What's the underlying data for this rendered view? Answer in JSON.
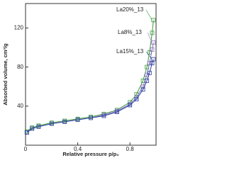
{
  "chart_data": {
    "type": "line",
    "x_label": "Relative pressure p/p₀",
    "y_label": "Absorbed volume, cm³/g",
    "x": [
      0.01,
      0.05,
      0.1,
      0.2,
      0.3,
      0.4,
      0.5,
      0.6,
      0.7,
      0.8,
      0.85,
      0.9,
      0.93,
      0.95,
      0.97,
      0.98
    ],
    "series": [
      {
        "name": "La20%_13",
        "color": "#3a9a3a",
        "values": [
          14,
          18,
          20,
          23,
          25,
          27,
          29,
          32,
          36,
          44,
          52,
          66,
          80,
          95,
          115,
          128
        ]
      },
      {
        "name": "La8%_13",
        "color": "#8a6fc0",
        "values": [
          13,
          17,
          19,
          22,
          24,
          26,
          28,
          31,
          35,
          42,
          49,
          60,
          72,
          84,
          98,
          105
        ]
      },
      {
        "name": "La15%_13",
        "color": "#2a3f9f",
        "values": [
          13,
          17,
          19,
          22,
          24,
          26,
          28,
          30,
          34,
          41,
          47,
          57,
          66,
          74,
          84,
          88
        ]
      }
    ],
    "xlim": [
      0,
      1.0
    ],
    "xticks": [
      0,
      0.4,
      0.8
    ],
    "ylim": [
      0,
      145
    ],
    "yticks": [
      40,
      80,
      120
    ],
    "grid": false
  }
}
